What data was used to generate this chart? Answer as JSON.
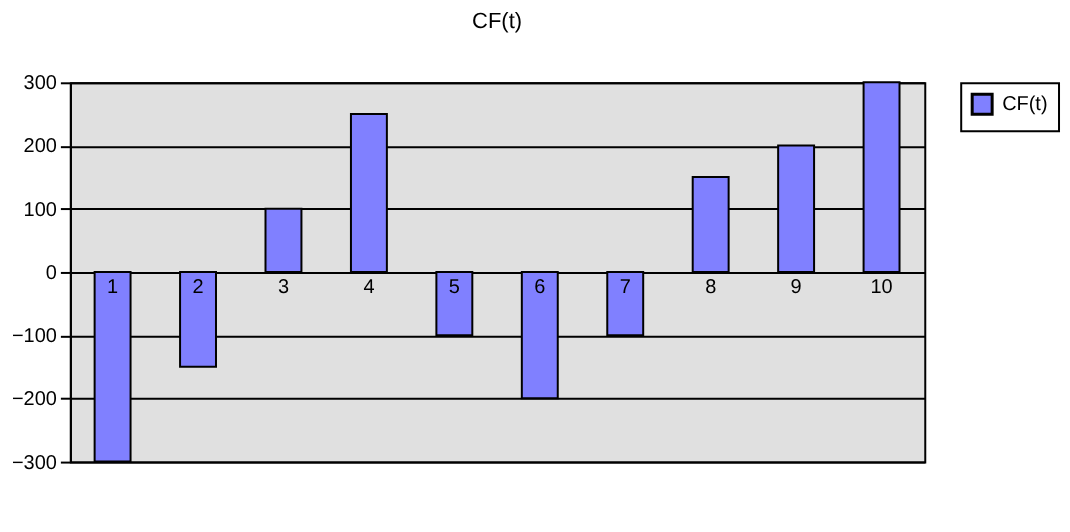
{
  "chart_data": {
    "type": "bar",
    "title": "CF(t)",
    "categories": [
      "1",
      "2",
      "3",
      "4",
      "5",
      "6",
      "7",
      "8",
      "9",
      "10"
    ],
    "series": [
      {
        "name": "CF(t)",
        "color": "#8080ff",
        "values": [
          -300,
          -150,
          100,
          250,
          -100,
          -200,
          -100,
          150,
          200,
          300
        ]
      }
    ],
    "ylim": [
      -300,
      300
    ],
    "yticks": [
      -300,
      -200,
      -100,
      0,
      100,
      200,
      300
    ],
    "grid": "y",
    "legend": "right"
  }
}
